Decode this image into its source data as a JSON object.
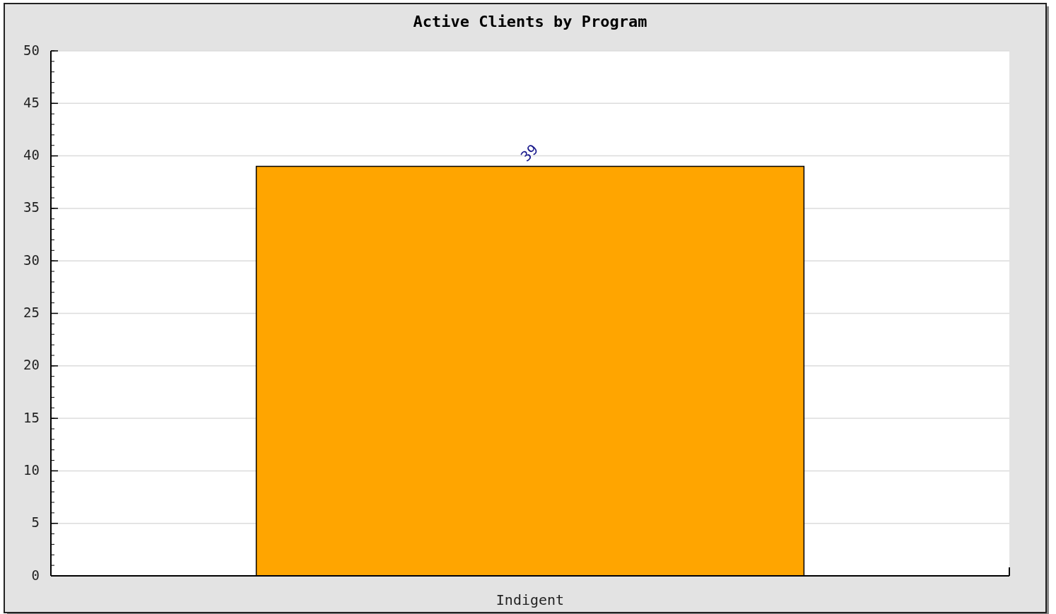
{
  "chart_data": {
    "type": "bar",
    "title": "Active Clients by Program",
    "categories": [
      "Indigent"
    ],
    "values": [
      39
    ],
    "color": "#ffa500",
    "ylim": [
      0,
      50
    ],
    "yticks": [
      0,
      5,
      10,
      15,
      20,
      25,
      30,
      35,
      40,
      45,
      50
    ],
    "grid": "y",
    "data_labels": true
  }
}
